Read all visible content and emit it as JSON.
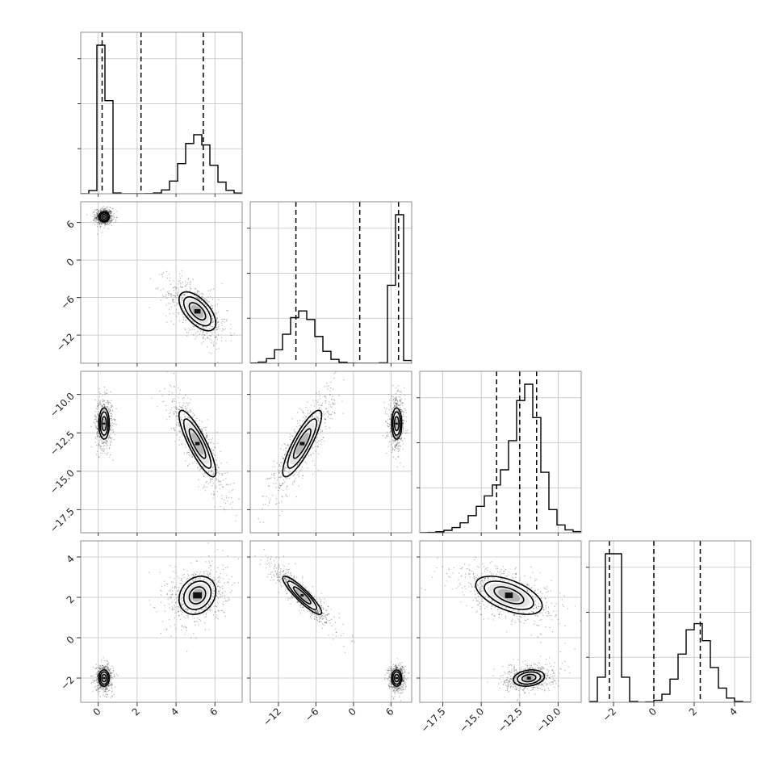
{
  "chart_data": {
    "type": "corner",
    "title": "",
    "grid": true,
    "params": [
      {
        "index": 0,
        "label": "",
        "range": [
          -0.9,
          7.4
        ],
        "ticks": [
          0,
          2,
          4,
          6
        ],
        "tick_labels": [
          "0",
          "2",
          "4",
          "6"
        ],
        "quantiles": [
          0.2,
          2.2,
          5.4
        ],
        "modes": [
          {
            "center": 0.3,
            "sigma": 0.2,
            "weight": 0.5
          },
          {
            "center": 5.1,
            "sigma": 0.7,
            "weight": 0.5
          }
        ]
      },
      {
        "index": 1,
        "label": "",
        "range": [
          -16.5,
          9.3
        ],
        "ticks": [
          -12,
          -6,
          0,
          6
        ],
        "tick_labels": [
          "−12",
          "−6",
          "0",
          "6"
        ],
        "quantiles": [
          -9.2,
          1.0,
          7.2
        ],
        "modes": [
          {
            "center": -8.2,
            "sigma": 2.3,
            "weight": 0.5
          },
          {
            "center": 6.9,
            "sigma": 0.6,
            "weight": 0.5
          }
        ]
      },
      {
        "index": 2,
        "label": "",
        "range": [
          -19.0,
          -8.5
        ],
        "ticks": [
          -17.5,
          -15.0,
          -12.5,
          -10.0
        ],
        "tick_labels": [
          "−17.5",
          "−15.0",
          "−12.5",
          "−10.0"
        ],
        "quantiles": [
          -14.0,
          -12.5,
          -11.4
        ],
        "modes": [
          {
            "center": -13.2,
            "sigma": 1.6,
            "weight": 0.5
          },
          {
            "center": -11.9,
            "sigma": 0.75,
            "weight": 0.5
          }
        ]
      },
      {
        "index": 3,
        "label": "",
        "range": [
          -3.2,
          4.8
        ],
        "ticks": [
          -2,
          0,
          2,
          4
        ],
        "tick_labels": [
          "−2",
          "0",
          "2",
          "4"
        ],
        "quantiles": [
          -2.2,
          0.0,
          2.3
        ],
        "modes": [
          {
            "center": -2.0,
            "sigma": 0.3,
            "weight": 0.5
          },
          {
            "center": 2.1,
            "sigma": 0.7,
            "weight": 0.5
          }
        ]
      }
    ],
    "hist_bins": 20,
    "hist_y_ticks_count": 3,
    "y_tick_labels": {
      "1": [
        "6",
        "0",
        "−6",
        "−12"
      ],
      "2": [
        "−10.0",
        "−12.5",
        "−15.0",
        "−17.5"
      ],
      "3": [
        "4",
        "2",
        "0",
        "−2"
      ]
    },
    "panels_2d": [
      {
        "row": 1,
        "col": 0,
        "clusters": [
          {
            "cx": 0.3,
            "cy": 6.9,
            "sx": 0.2,
            "sy": 0.6,
            "rho": 0.0
          },
          {
            "cx": 5.1,
            "cy": -8.2,
            "sx": 0.7,
            "sy": 2.3,
            "rho": -0.6
          }
        ]
      },
      {
        "row": 2,
        "col": 0,
        "clusters": [
          {
            "cx": 0.3,
            "cy": -11.9,
            "sx": 0.2,
            "sy": 0.75,
            "rho": 0.0
          },
          {
            "cx": 5.1,
            "cy": -13.2,
            "sx": 0.7,
            "sy": 1.6,
            "rho": -0.85
          }
        ]
      },
      {
        "row": 2,
        "col": 1,
        "clusters": [
          {
            "cx": 6.9,
            "cy": -11.9,
            "sx": 0.6,
            "sy": 0.75,
            "rho": 0.0
          },
          {
            "cx": -8.2,
            "cy": -13.2,
            "sx": 2.3,
            "sy": 1.6,
            "rho": 0.85
          }
        ]
      },
      {
        "row": 3,
        "col": 0,
        "clusters": [
          {
            "cx": 0.3,
            "cy": -2.0,
            "sx": 0.2,
            "sy": 0.3,
            "rho": 0.0
          },
          {
            "cx": 5.1,
            "cy": 2.1,
            "sx": 0.7,
            "sy": 0.7,
            "rho": 0.2
          }
        ]
      },
      {
        "row": 3,
        "col": 1,
        "clusters": [
          {
            "cx": 6.9,
            "cy": -2.0,
            "sx": 0.6,
            "sy": 0.3,
            "rho": 0.0
          },
          {
            "cx": -8.2,
            "cy": 2.1,
            "sx": 2.3,
            "sy": 0.7,
            "rho": -0.9
          }
        ]
      },
      {
        "row": 3,
        "col": 2,
        "clusters": [
          {
            "cx": -11.9,
            "cy": -2.0,
            "sx": 0.75,
            "sy": 0.3,
            "rho": 0.2
          },
          {
            "cx": -13.2,
            "cy": 2.1,
            "sx": 1.6,
            "sy": 0.7,
            "rho": -0.55
          }
        ]
      }
    ]
  }
}
